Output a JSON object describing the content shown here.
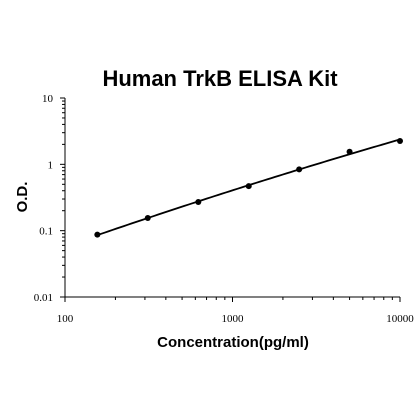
{
  "chart_data": {
    "type": "scatter",
    "title": "Human TrkB ELISA Kit",
    "xlabel": "Concentration(pg/ml)",
    "ylabel": "O.D.",
    "x_scale": "log",
    "y_scale": "log",
    "xlim": [
      100,
      10000
    ],
    "ylim": [
      0.01,
      10
    ],
    "x_ticks": [
      "100",
      "1000",
      "10000"
    ],
    "y_ticks": [
      "0.01",
      "0.1",
      "1",
      "10"
    ],
    "grid": false,
    "series": [
      {
        "points": [
          {
            "x": 156,
            "y": 0.087
          },
          {
            "x": 312,
            "y": 0.155
          },
          {
            "x": 625,
            "y": 0.27
          },
          {
            "x": 1250,
            "y": 0.47
          },
          {
            "x": 2500,
            "y": 0.84
          },
          {
            "x": 5000,
            "y": 1.55
          },
          {
            "x": 10000,
            "y": 2.25
          }
        ],
        "fit_curve": true
      }
    ]
  }
}
